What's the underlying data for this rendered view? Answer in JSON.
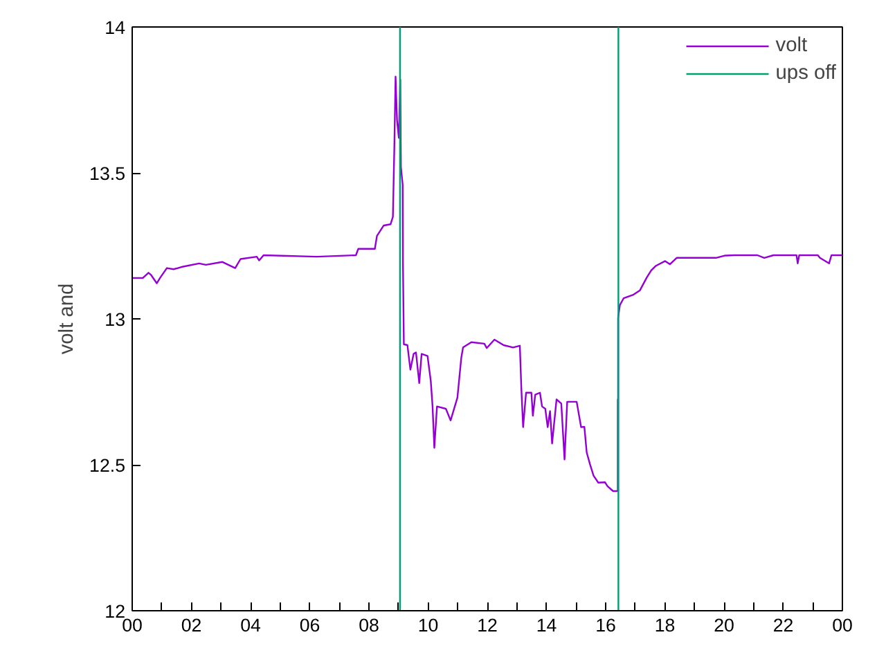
{
  "chart_data": {
    "type": "line",
    "ylabel": "volt and",
    "legend": "top right",
    "grid": false,
    "xlim": [
      0,
      24
    ],
    "ylim": [
      12,
      14
    ],
    "xticks": [
      {
        "value": 0,
        "label": "00"
      },
      {
        "value": 1,
        "label": null
      },
      {
        "value": 2,
        "label": "02"
      },
      {
        "value": 3,
        "label": null
      },
      {
        "value": 4,
        "label": "04"
      },
      {
        "value": 5,
        "label": null
      },
      {
        "value": 6,
        "label": "06"
      },
      {
        "value": 7,
        "label": null
      },
      {
        "value": 8,
        "label": "08"
      },
      {
        "value": 9,
        "label": null
      },
      {
        "value": 10,
        "label": "10"
      },
      {
        "value": 11,
        "label": null
      },
      {
        "value": 12,
        "label": "12"
      },
      {
        "value": 13,
        "label": null
      },
      {
        "value": 14,
        "label": "14"
      },
      {
        "value": 15,
        "label": null
      },
      {
        "value": 16,
        "label": "16"
      },
      {
        "value": 17,
        "label": null
      },
      {
        "value": 18,
        "label": "18"
      },
      {
        "value": 19,
        "label": null
      },
      {
        "value": 20,
        "label": "20"
      },
      {
        "value": 21,
        "label": null
      },
      {
        "value": 22,
        "label": "22"
      },
      {
        "value": 23,
        "label": null
      },
      {
        "value": 24,
        "label": "00"
      }
    ],
    "yticks": [
      12,
      12.5,
      13,
      13.5,
      14
    ],
    "series": [
      {
        "name": "volt",
        "color": "#9400d3",
        "x": [
          0,
          0.36,
          0.55,
          0.64,
          0.83,
          0.94,
          1.17,
          1.4,
          1.72,
          2.26,
          2.49,
          3.04,
          3.48,
          3.66,
          4.21,
          4.29,
          4.44,
          6.24,
          7.56,
          7.64,
          8.2,
          8.27,
          8.5,
          8.73,
          8.81,
          8.86,
          8.9,
          8.95,
          9.01,
          9.06,
          9.08,
          9.14,
          9.15,
          9.18,
          9.3,
          9.4,
          9.51,
          9.59,
          9.7,
          9.78,
          9.98,
          10.09,
          10.15,
          10.21,
          10.3,
          10.6,
          10.76,
          10.99,
          11.12,
          11.18,
          11.46,
          11.9,
          11.98,
          12.24,
          12.55,
          12.87,
          13.1,
          13.15,
          13.21,
          13.31,
          13.49,
          13.54,
          13.62,
          13.78,
          13.85,
          13.96,
          14.04,
          14.12,
          14.19,
          14.34,
          14.5,
          14.61,
          14.7,
          15.02,
          15.17,
          15.28,
          15.36,
          15.47,
          15.59,
          15.75,
          15.98,
          16.06,
          16.25,
          16.41,
          16.41,
          16.42,
          16.42,
          16.48,
          16.61,
          16.92,
          17.16,
          17.39,
          17.54,
          17.7,
          18.01,
          18.17,
          18.4,
          19.73,
          20.04,
          20.35,
          21.13,
          21.36,
          21.67,
          22.45,
          22.49,
          22.54,
          23.17,
          23.24,
          23.55,
          23.63,
          24
        ],
        "values": [
          13.14,
          13.14,
          13.158,
          13.15,
          13.122,
          13.14,
          13.174,
          13.17,
          13.179,
          13.19,
          13.185,
          13.195,
          13.174,
          13.205,
          13.213,
          13.2,
          13.218,
          13.213,
          13.218,
          13.24,
          13.24,
          13.284,
          13.32,
          13.324,
          13.35,
          13.596,
          13.83,
          13.68,
          13.62,
          13.82,
          13.52,
          13.46,
          13.19,
          12.913,
          12.91,
          12.826,
          12.88,
          12.885,
          12.78,
          12.88,
          12.873,
          12.787,
          12.7,
          12.558,
          12.7,
          12.692,
          12.652,
          12.73,
          12.866,
          12.902,
          12.92,
          12.915,
          12.9,
          12.929,
          12.91,
          12.902,
          12.908,
          12.763,
          12.629,
          12.747,
          12.747,
          12.668,
          12.74,
          12.747,
          12.7,
          12.692,
          12.629,
          12.684,
          12.573,
          12.724,
          12.71,
          12.518,
          12.716,
          12.716,
          12.629,
          12.63,
          12.542,
          12.502,
          12.463,
          12.439,
          12.44,
          12.427,
          12.41,
          12.41,
          12.724,
          12.41,
          13.003,
          13.047,
          13.071,
          13.082,
          13.098,
          13.142,
          13.166,
          13.182,
          13.198,
          13.187,
          13.209,
          13.209,
          13.217,
          13.218,
          13.218,
          13.209,
          13.218,
          13.218,
          13.19,
          13.218,
          13.218,
          13.209,
          13.19,
          13.218,
          13.218
        ]
      },
      {
        "name": "ups off",
        "color": "#009e73",
        "x": [
          9.05,
          9.05,
          null,
          16.43,
          16.43
        ],
        "values": [
          12,
          14,
          null,
          12,
          14
        ]
      }
    ]
  }
}
